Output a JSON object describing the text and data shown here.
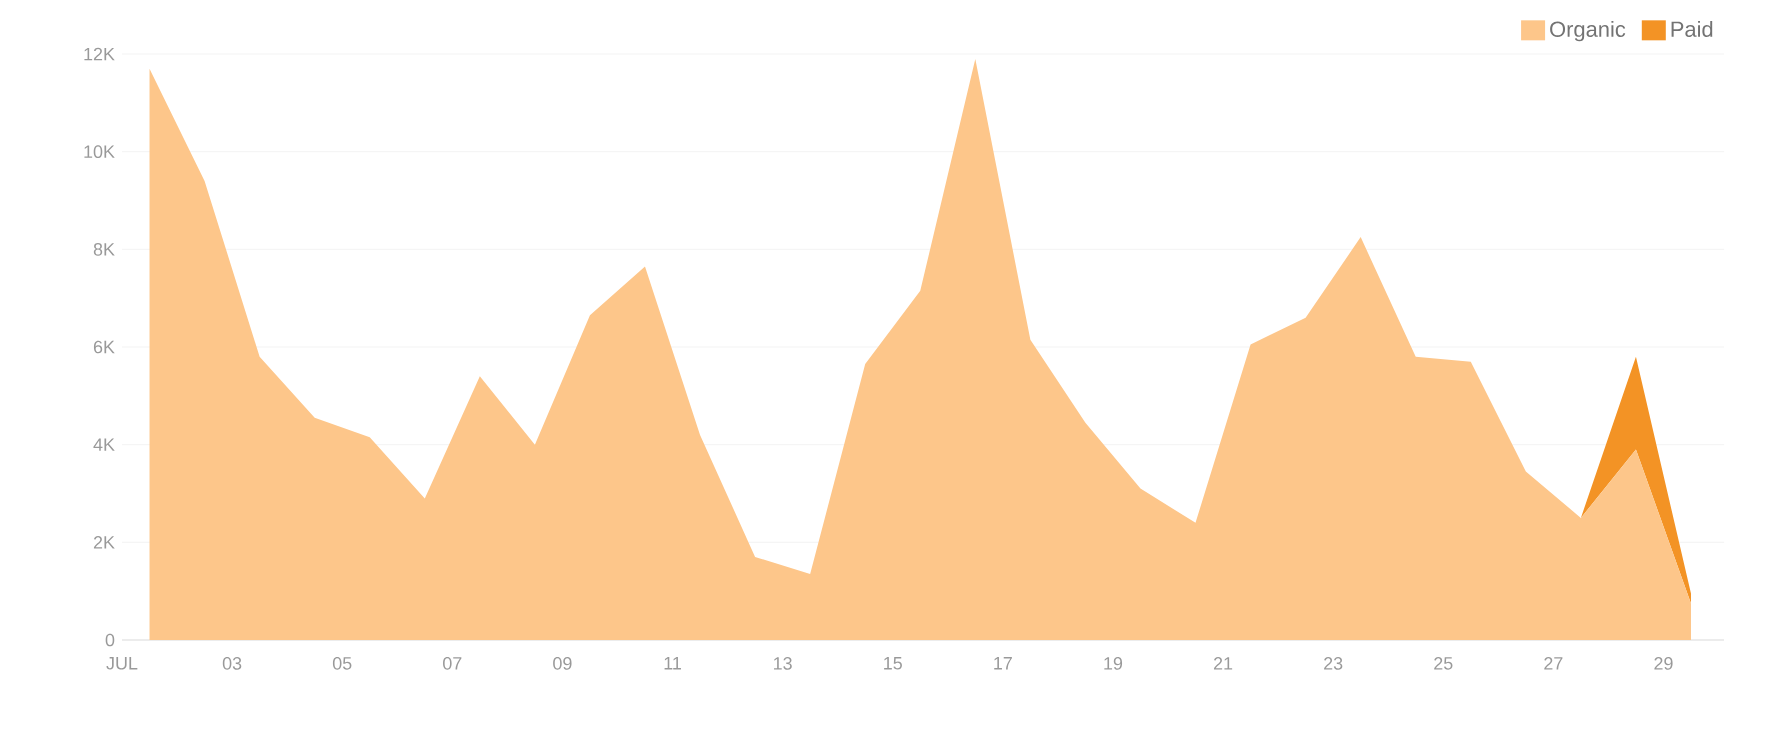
{
  "chart_data": {
    "type": "area",
    "stacked": true,
    "legend": "top right",
    "grid": "y",
    "x": [
      1.5,
      2.5,
      3.5,
      4.5,
      5.5,
      6.5,
      7.5,
      8.5,
      9.5,
      10.5,
      11.5,
      12.5,
      13.5,
      14.5,
      15.5,
      16.5,
      17.5,
      18.5,
      19.5,
      20.5,
      21.5,
      22.5,
      23.5,
      24.5,
      25.5,
      26.5,
      27.5,
      28.5,
      29.5
    ],
    "series": [
      {
        "name": "Organic",
        "color": "#fdc68a",
        "values": [
          11700,
          9400,
          5800,
          4550,
          4150,
          2900,
          5400,
          4000,
          6650,
          7650,
          4200,
          1700,
          1350,
          5650,
          7150,
          11900,
          6150,
          4450,
          3100,
          2400,
          6050,
          6600,
          8250,
          5800,
          5700,
          3450,
          2500,
          3900,
          750
        ]
      },
      {
        "name": "Paid",
        "color": "#f39325",
        "values": [
          0,
          0,
          0,
          0,
          0,
          0,
          0,
          0,
          0,
          0,
          0,
          0,
          0,
          0,
          0,
          0,
          0,
          0,
          0,
          0,
          0,
          0,
          0,
          0,
          0,
          0,
          0,
          1900,
          200
        ]
      }
    ],
    "xlim": [
      1,
      30.1
    ],
    "ylim": [
      0,
      12000
    ],
    "xticks": [
      {
        "value": 1,
        "label": "JUL"
      },
      {
        "value": 3,
        "label": "03"
      },
      {
        "value": 5,
        "label": "05"
      },
      {
        "value": 7,
        "label": "07"
      },
      {
        "value": 9,
        "label": "09"
      },
      {
        "value": 11,
        "label": "11"
      },
      {
        "value": 13,
        "label": "13"
      },
      {
        "value": 15,
        "label": "15"
      },
      {
        "value": 17,
        "label": "17"
      },
      {
        "value": 19,
        "label": "19"
      },
      {
        "value": 21,
        "label": "21"
      },
      {
        "value": 23,
        "label": "23"
      },
      {
        "value": 25,
        "label": "25"
      },
      {
        "value": 27,
        "label": "27"
      },
      {
        "value": 29,
        "label": "29"
      }
    ],
    "yticks": [
      0,
      {
        "value": 2000,
        "label": "2K"
      },
      {
        "value": 4000,
        "label": "4K"
      },
      {
        "value": 6000,
        "label": "6K"
      },
      {
        "value": 8000,
        "label": "8K"
      },
      {
        "value": 10000,
        "label": "10K"
      },
      {
        "value": 12000,
        "label": "12K"
      }
    ]
  }
}
